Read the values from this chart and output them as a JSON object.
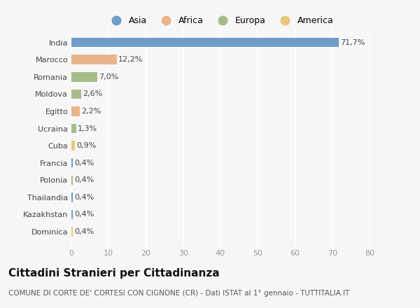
{
  "categories": [
    "India",
    "Marocco",
    "Romania",
    "Moldova",
    "Egitto",
    "Ucraina",
    "Cuba",
    "Francia",
    "Polonia",
    "Thailandia",
    "Kazakhstan",
    "Dominica"
  ],
  "values": [
    71.7,
    12.2,
    7.0,
    2.6,
    2.2,
    1.3,
    0.9,
    0.4,
    0.4,
    0.4,
    0.4,
    0.4
  ],
  "labels": [
    "71,7%",
    "12,2%",
    "7,0%",
    "2,6%",
    "2,2%",
    "1,3%",
    "0,9%",
    "0,4%",
    "0,4%",
    "0,4%",
    "0,4%",
    "0,4%"
  ],
  "colors": [
    "#6e9dc9",
    "#e8b48a",
    "#a8bc8a",
    "#a8bc8a",
    "#e8b48a",
    "#a8bc8a",
    "#e8c87a",
    "#6e9dc9",
    "#a8bc8a",
    "#6e9dc9",
    "#6e9dc9",
    "#e8c87a"
  ],
  "legend_labels": [
    "Asia",
    "Africa",
    "Europa",
    "America"
  ],
  "legend_colors": [
    "#6e9dc9",
    "#e8b48a",
    "#a8bc8a",
    "#e8c87a"
  ],
  "title": "Cittadini Stranieri per Cittadinanza",
  "subtitle": "COMUNE DI CORTE DE' CORTESI CON CIGNONE (CR) - Dati ISTAT al 1° gennaio - TUTTITALIA.IT",
  "xlim": [
    0,
    80
  ],
  "xticks": [
    0,
    10,
    20,
    30,
    40,
    50,
    60,
    70,
    80
  ],
  "background_color": "#f7f7f7",
  "grid_color": "#ffffff",
  "title_fontsize": 11,
  "subtitle_fontsize": 7.5,
  "label_fontsize": 8,
  "tick_fontsize": 8
}
